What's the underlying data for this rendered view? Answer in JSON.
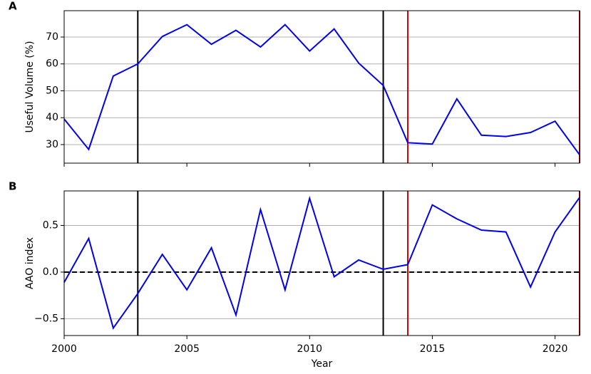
{
  "chart_data": [
    {
      "type": "line",
      "panel_label": "A",
      "ylabel": "Useful Volume (%)",
      "x": [
        2000,
        2001,
        2002,
        2003,
        2004,
        2005,
        2006,
        2007,
        2008,
        2009,
        2010,
        2011,
        2012,
        2013,
        2014,
        2015,
        2016,
        2017,
        2018,
        2019,
        2020,
        2021
      ],
      "values": [
        39.5,
        28.2,
        55.5,
        60,
        70.2,
        74.6,
        67.3,
        72.5,
        66.3,
        74.6,
        64.8,
        73,
        60.3,
        52,
        30.7,
        30.2,
        47,
        33.5,
        33,
        34.5,
        38.7,
        26.2
      ],
      "color": "#0000ee",
      "xlim": [
        2000,
        2021
      ],
      "xticks": [
        2000,
        2005,
        2010,
        2015,
        2020
      ],
      "show_xtick_labels": false,
      "ylim": [
        23.1,
        79.8
      ],
      "yticks": [
        30,
        40,
        50,
        60,
        70
      ],
      "grid": true,
      "vlines": [
        {
          "x": 2003,
          "color": "#000000"
        },
        {
          "x": 2013,
          "color": "#000000"
        },
        {
          "x": 2014,
          "color": "#e00000"
        },
        {
          "x": 2021,
          "color": "#e00000"
        }
      ]
    },
    {
      "type": "line",
      "panel_label": "B",
      "ylabel": "AAO index",
      "xlabel": "Year",
      "x": [
        2000,
        2001,
        2002,
        2003,
        2004,
        2005,
        2006,
        2007,
        2008,
        2009,
        2010,
        2011,
        2012,
        2013,
        2014,
        2015,
        2016,
        2017,
        2018,
        2019,
        2020,
        2021
      ],
      "values": [
        -0.11,
        0.36,
        -0.6,
        -0.23,
        0.19,
        -0.19,
        0.26,
        -0.46,
        0.67,
        -0.19,
        0.79,
        -0.05,
        0.13,
        0.03,
        0.08,
        0.72,
        0.57,
        0.45,
        0.43,
        -0.16,
        0.43,
        0.8
      ],
      "color": "#0000ee",
      "xlim": [
        2000,
        2021
      ],
      "xticks": [
        2000,
        2005,
        2010,
        2015,
        2020
      ],
      "show_xtick_labels": true,
      "ylim": [
        -0.68,
        0.87
      ],
      "yticks": [
        {
          "value": -0.5,
          "label": "−0.5"
        },
        {
          "value": 0,
          "label": "0.0"
        },
        0.5
      ],
      "grid": true,
      "hline": 0,
      "vlines": [
        {
          "x": 2003,
          "color": "#000000"
        },
        {
          "x": 2013,
          "color": "#000000"
        },
        {
          "x": 2014,
          "color": "#e00000"
        },
        {
          "x": 2021,
          "color": "#e00000"
        }
      ]
    }
  ]
}
